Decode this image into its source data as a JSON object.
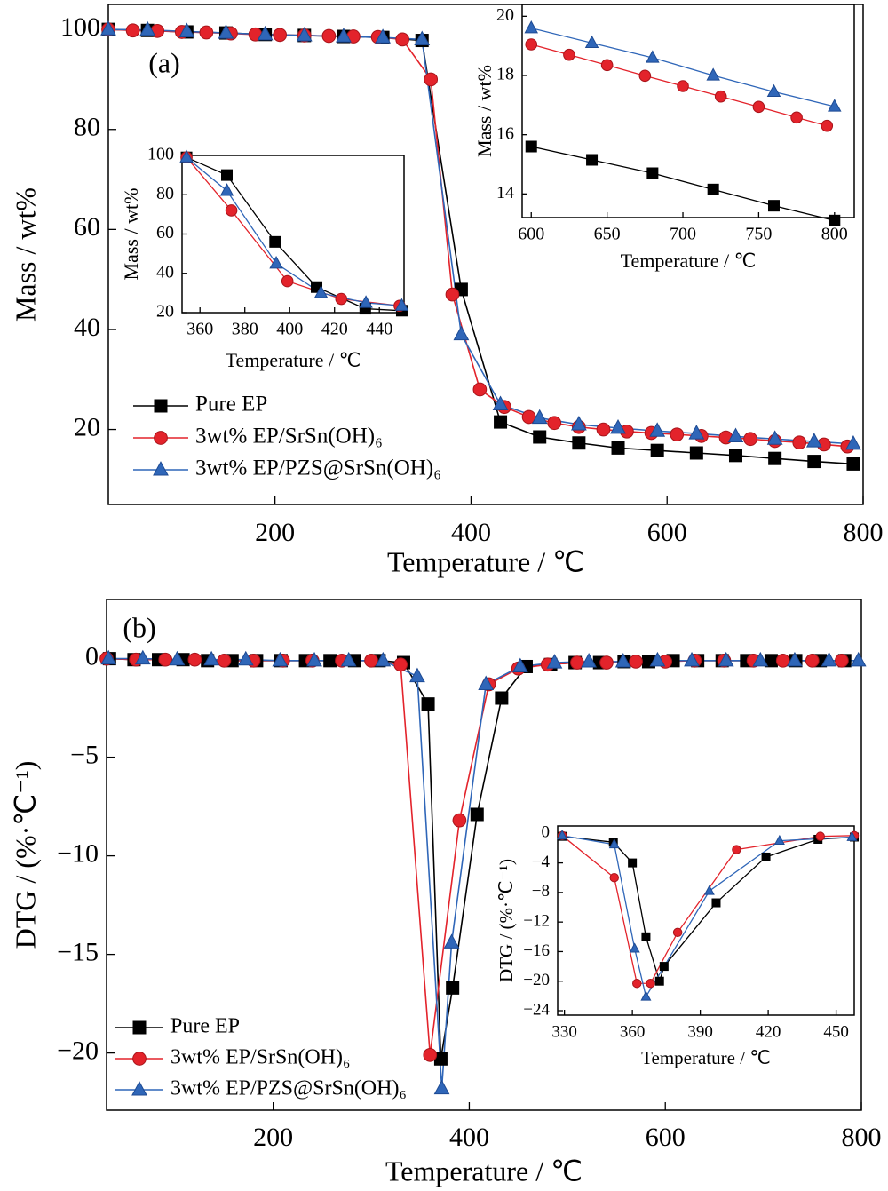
{
  "chart_data": [
    {
      "type": "line",
      "annotation": "(a)",
      "xlabel": "Temperature / ℃",
      "ylabel": "Mass / wt%",
      "xlim": [
        30,
        800
      ],
      "ylim": [
        5,
        105
      ],
      "xticks": [
        200,
        400,
        600,
        800
      ],
      "yticks": [
        20,
        40,
        60,
        80,
        100
      ],
      "legend": "lower left",
      "series": [
        {
          "name": "Pure EP",
          "color": "#000000",
          "marker": "square",
          "x": [
            30,
            70,
            110,
            150,
            190,
            230,
            270,
            310,
            350,
            390,
            430,
            470,
            510,
            550,
            590,
            630,
            670,
            710,
            750,
            790
          ],
          "values": [
            100,
            99.8,
            99.5,
            99.3,
            99,
            98.8,
            98.6,
            98.4,
            97.8,
            48,
            21.5,
            18.5,
            17.3,
            16.3,
            15.8,
            15.3,
            14.8,
            14.2,
            13.6,
            13.1
          ]
        },
        {
          "name": "3wt% EP/SrSn(OH)₆",
          "color": "#e3232b",
          "marker": "circle",
          "x": [
            30,
            55,
            80,
            105,
            130,
            155,
            180,
            205,
            230,
            255,
            280,
            305,
            330,
            359,
            381,
            409,
            434,
            459,
            485,
            510,
            535,
            559,
            584,
            610,
            635,
            660,
            685,
            710,
            735,
            760,
            784
          ],
          "values": [
            100,
            99.8,
            99.7,
            99.5,
            99.4,
            99.2,
            99,
            98.9,
            98.8,
            98.7,
            98.6,
            98.5,
            98,
            90,
            47,
            28,
            24.5,
            22.5,
            21.3,
            20.5,
            20,
            19.6,
            19.3,
            19,
            18.7,
            18.4,
            18.1,
            17.7,
            17.4,
            17,
            16.6
          ]
        },
        {
          "name": "3wt% EP/PZS@SrSn(OH)₆",
          "color": "#2f66b8",
          "marker": "triangle",
          "x": [
            30,
            70,
            110,
            150,
            190,
            230,
            270,
            310,
            350,
            390,
            430,
            470,
            510,
            550,
            590,
            630,
            670,
            710,
            750,
            790
          ],
          "values": [
            100,
            99.9,
            99.6,
            99.3,
            99,
            98.8,
            98.6,
            98.4,
            98,
            39,
            25,
            22.3,
            21,
            20.3,
            19.7,
            19.2,
            18.6,
            18.1,
            17.6,
            17.1
          ]
        }
      ]
    },
    {
      "type": "line",
      "xlabel": "Temperature / ℃",
      "ylabel": "Mass / wt%",
      "xlim": [
        352,
        451
      ],
      "ylim": [
        20,
        100
      ],
      "xticks": [
        360,
        380,
        400,
        420,
        440
      ],
      "yticks": [
        20,
        40,
        60,
        80,
        100
      ],
      "series": [
        {
          "color": "#000000",
          "marker": "square",
          "x": [
            354,
            372,
            393.5,
            412,
            433.7,
            450
          ],
          "values": [
            99,
            90,
            56,
            33,
            22,
            21
          ]
        },
        {
          "color": "#e3232b",
          "marker": "circle",
          "x": [
            354,
            374,
            399,
            423,
            449
          ],
          "values": [
            99,
            72,
            36,
            27,
            23.5
          ]
        },
        {
          "color": "#2f66b8",
          "marker": "triangle",
          "x": [
            354,
            372,
            394,
            414,
            434,
            450
          ],
          "values": [
            99,
            82,
            45,
            30,
            25,
            23.5
          ]
        }
      ]
    },
    {
      "type": "line",
      "xlabel": "Temperature / ℃",
      "ylabel": "Mass / wt%",
      "xlim": [
        594,
        813
      ],
      "ylim": [
        13.2,
        20.4
      ],
      "xticks": [
        600,
        650,
        700,
        750,
        800
      ],
      "yticks": [
        14,
        16,
        18,
        20
      ],
      "series": [
        {
          "color": "#000000",
          "marker": "square",
          "x": [
            600,
            640,
            680,
            720,
            760,
            800
          ],
          "values": [
            15.6,
            15.15,
            14.7,
            14.15,
            13.6,
            13.1
          ]
        },
        {
          "color": "#e3232b",
          "marker": "circle",
          "x": [
            600,
            625,
            650,
            675,
            700,
            725,
            750,
            775,
            795
          ],
          "values": [
            19.05,
            18.7,
            18.35,
            17.99,
            17.64,
            17.29,
            16.94,
            16.58,
            16.3
          ]
        },
        {
          "color": "#2f66b8",
          "marker": "triangle",
          "x": [
            600,
            640,
            680,
            720,
            760,
            800
          ],
          "values": [
            19.6,
            19.1,
            18.6,
            18.0,
            17.45,
            16.95
          ]
        }
      ]
    },
    {
      "type": "line",
      "annotation": "(b)",
      "xlabel": "Temperature / ℃",
      "ylabel": "DTG / (%·℃⁻¹)",
      "xlim": [
        30,
        800
      ],
      "ylim": [
        -22.9,
        3
      ],
      "xticks": [
        200,
        400,
        600,
        800
      ],
      "yticks": [
        0,
        {
          "value": -5,
          "label": "−5"
        },
        {
          "value": -10,
          "label": "−10"
        },
        {
          "value": -15,
          "label": "−15"
        },
        {
          "value": -20,
          "label": "−20"
        }
      ],
      "legend": "lower left",
      "series": [
        {
          "name": "Pure EP",
          "color": "#000000",
          "marker": "square",
          "x": [
            33,
            58,
            83,
            108,
            133,
            158,
            183,
            208,
            233,
            258,
            283,
            308,
            333,
            358,
            371,
            383,
            408,
            433,
            458,
            483,
            508,
            533,
            558,
            583,
            608,
            633,
            658,
            683,
            708,
            733,
            758,
            783
          ],
          "values": [
            0,
            -0.05,
            -0.05,
            -0.05,
            -0.1,
            -0.1,
            -0.1,
            -0.1,
            -0.1,
            -0.1,
            -0.1,
            -0.1,
            -0.2,
            -2.3,
            -20.3,
            -16.7,
            -7.9,
            -2.0,
            -0.4,
            -0.3,
            -0.2,
            -0.2,
            -0.15,
            -0.15,
            -0.1,
            -0.1,
            -0.1,
            -0.1,
            -0.1,
            -0.1,
            -0.1,
            -0.1
          ]
        },
        {
          "name": "3wt% EP/SrSn(OH)₆",
          "color": "#e3232b",
          "marker": "circle",
          "x": [
            30,
            60,
            90,
            120,
            150,
            180,
            210,
            240,
            270,
            300,
            330,
            360,
            390,
            420,
            450,
            480,
            510,
            540,
            570,
            600,
            630,
            660,
            690,
            720,
            750,
            780
          ],
          "values": [
            0,
            -0.05,
            -0.05,
            -0.05,
            -0.1,
            -0.1,
            -0.1,
            -0.1,
            -0.1,
            -0.1,
            -0.3,
            -20.1,
            -8.2,
            -1.3,
            -0.5,
            -0.3,
            -0.2,
            -0.2,
            -0.15,
            -0.15,
            -0.1,
            -0.1,
            -0.1,
            -0.1,
            -0.1,
            -0.1
          ]
        },
        {
          "name": "3wt% EP/PZS@SrSn(OH)₆",
          "color": "#2f66b8",
          "marker": "triangle",
          "x": [
            32,
            67,
            102,
            137,
            172,
            207,
            242,
            277,
            312,
            347,
            372,
            382,
            417,
            452,
            487,
            522,
            557,
            592,
            627,
            662,
            697,
            732,
            767,
            797
          ],
          "values": [
            0,
            0,
            -0.05,
            -0.05,
            -0.05,
            -0.1,
            -0.1,
            -0.1,
            -0.1,
            -0.9,
            -21.8,
            -14.4,
            -1.3,
            -0.4,
            -0.2,
            -0.15,
            -0.15,
            -0.1,
            -0.1,
            -0.1,
            -0.1,
            -0.1,
            -0.1,
            -0.1
          ]
        }
      ]
    },
    {
      "type": "line",
      "xlabel": "Temperature / ℃",
      "ylabel": "DTG / (%·℃⁻¹)",
      "xlim": [
        327,
        458
      ],
      "ylim": [
        -24.6,
        1
      ],
      "xticks": [
        330,
        360,
        390,
        420,
        450
      ],
      "yticks": [
        0,
        {
          "value": -4,
          "label": "−4"
        },
        {
          "value": -8,
          "label": "−8"
        },
        {
          "value": -12,
          "label": "−12"
        },
        {
          "value": -16,
          "label": "−16"
        },
        {
          "value": -20,
          "label": "−20"
        },
        {
          "value": -24,
          "label": "−24"
        }
      ],
      "series": [
        {
          "color": "#000000",
          "marker": "square",
          "x": [
            329,
            351.6,
            360,
            366,
            372,
            374,
            397,
            419,
            442,
            458
          ],
          "values": [
            -0.4,
            -1.2,
            -4,
            -14,
            -20,
            -18,
            -9.4,
            -3.2,
            -0.8,
            -0.5
          ]
        },
        {
          "color": "#e3232b",
          "marker": "circle",
          "x": [
            329,
            352,
            362,
            368,
            380,
            406,
            443,
            458
          ],
          "values": [
            -0.3,
            -6,
            -20.3,
            -20.3,
            -13.4,
            -2.2,
            -0.4,
            -0.3
          ]
        },
        {
          "color": "#2f66b8",
          "marker": "triangle",
          "x": [
            329,
            352,
            361,
            366,
            394,
            425,
            457
          ],
          "values": [
            -0.3,
            -1.5,
            -15.6,
            -22.1,
            -7.8,
            -1.0,
            -0.5
          ]
        }
      ]
    }
  ]
}
